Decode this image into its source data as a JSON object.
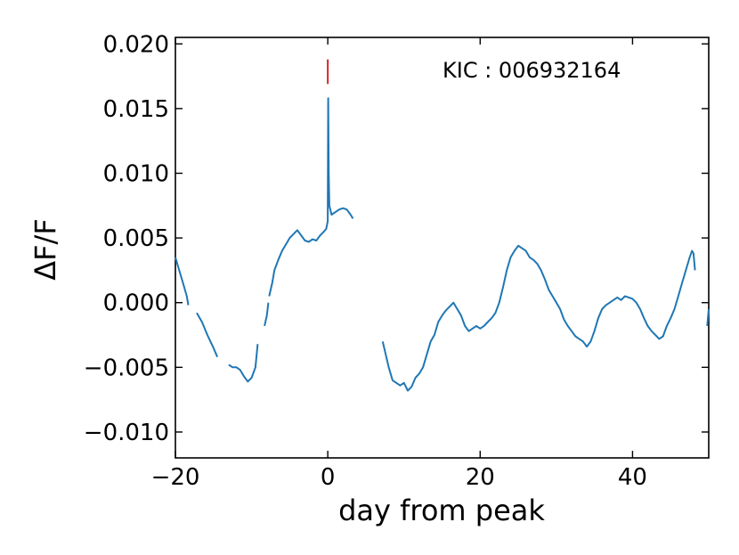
{
  "chart_data": {
    "type": "line",
    "title": "",
    "xlabel": "day from peak",
    "ylabel": "ΔF/F",
    "xlim": [
      -20,
      50
    ],
    "ylim": [
      -0.012,
      0.0205
    ],
    "xticks": [
      -20,
      0,
      20,
      40
    ],
    "xtick_labels": [
      "−20",
      "0",
      "20",
      "40"
    ],
    "yticks": [
      -0.01,
      -0.005,
      0.0,
      0.005,
      0.01,
      0.015,
      0.02
    ],
    "ytick_labels": [
      "−0.010",
      "−0.005",
      "0.000",
      "0.005",
      "0.010",
      "0.015",
      "0.020"
    ],
    "grid": false,
    "annotation": "KIC : 006932164",
    "peak_marker": {
      "x": 0,
      "y_range": [
        0.0169,
        0.0188
      ],
      "color": "#d62728"
    },
    "series_color": "#1f77b4",
    "segments": [
      [
        [
          -20.0,
          0.0035
        ],
        [
          -19.5,
          0.0025
        ],
        [
          -19.0,
          0.0015
        ],
        [
          -18.5,
          0.0005
        ],
        [
          -18.3,
          -0.0002
        ]
      ],
      [
        [
          -17.2,
          -0.0008
        ],
        [
          -16.5,
          -0.0015
        ],
        [
          -15.8,
          -0.0025
        ],
        [
          -15.0,
          -0.0035
        ],
        [
          -14.5,
          -0.0042
        ]
      ],
      [
        [
          -13.0,
          -0.0048
        ],
        [
          -12.5,
          -0.005
        ],
        [
          -12.0,
          -0.005
        ],
        [
          -11.5,
          -0.0052
        ],
        [
          -11.0,
          -0.0057
        ],
        [
          -10.5,
          -0.0061
        ],
        [
          -10.0,
          -0.0058
        ],
        [
          -9.5,
          -0.005
        ],
        [
          -9.2,
          -0.0032
        ]
      ],
      [
        [
          -8.3,
          -0.0018
        ],
        [
          -8.0,
          -0.001
        ],
        [
          -7.8,
          0.0
        ]
      ],
      [
        [
          -7.7,
          0.0005
        ],
        [
          -7.3,
          0.0015
        ],
        [
          -7.0,
          0.0025
        ],
        [
          -6.5,
          0.0033
        ],
        [
          -6.0,
          0.004
        ],
        [
          -5.5,
          0.0045
        ],
        [
          -5.0,
          0.005
        ],
        [
          -4.5,
          0.0053
        ],
        [
          -4.0,
          0.0056
        ],
        [
          -3.5,
          0.0052
        ],
        [
          -3.0,
          0.0048
        ],
        [
          -2.5,
          0.0047
        ],
        [
          -2.0,
          0.0049
        ],
        [
          -1.5,
          0.0048
        ],
        [
          -1.0,
          0.0052
        ],
        [
          -0.5,
          0.0055
        ],
        [
          -0.2,
          0.0057
        ],
        [
          0.0,
          0.0063
        ],
        [
          0.05,
          0.0158
        ],
        [
          0.12,
          0.01
        ],
        [
          0.2,
          0.0075
        ],
        [
          0.5,
          0.0068
        ],
        [
          1.0,
          0.007
        ],
        [
          1.5,
          0.0072
        ],
        [
          2.0,
          0.0073
        ],
        [
          2.5,
          0.0072
        ],
        [
          3.0,
          0.0068
        ],
        [
          3.3,
          0.0065
        ]
      ],
      [
        [
          7.2,
          -0.003
        ],
        [
          7.6,
          -0.004
        ],
        [
          8.0,
          -0.005
        ],
        [
          8.5,
          -0.006
        ],
        [
          9.0,
          -0.0062
        ],
        [
          9.5,
          -0.0064
        ],
        [
          10.0,
          -0.0062
        ],
        [
          10.5,
          -0.0068
        ],
        [
          11.0,
          -0.0065
        ],
        [
          11.5,
          -0.0058
        ],
        [
          12.0,
          -0.0055
        ],
        [
          12.5,
          -0.005
        ],
        [
          13.0,
          -0.004
        ],
        [
          13.5,
          -0.003
        ],
        [
          14.0,
          -0.0025
        ],
        [
          14.5,
          -0.0015
        ],
        [
          15.0,
          -0.001
        ],
        [
          15.5,
          -0.0006
        ],
        [
          16.0,
          -0.0003
        ],
        [
          16.5,
          0.0
        ],
        [
          17.0,
          -0.0005
        ],
        [
          17.5,
          -0.001
        ],
        [
          18.0,
          -0.0018
        ],
        [
          18.5,
          -0.0022
        ],
        [
          19.0,
          -0.002
        ],
        [
          19.5,
          -0.0018
        ],
        [
          20.0,
          -0.002
        ],
        [
          20.5,
          -0.0018
        ],
        [
          21.0,
          -0.0015
        ],
        [
          21.5,
          -0.0012
        ],
        [
          22.0,
          -0.0008
        ],
        [
          22.5,
          0.0
        ],
        [
          23.0,
          0.0012
        ],
        [
          23.5,
          0.0025
        ],
        [
          24.0,
          0.0035
        ],
        [
          24.5,
          0.004
        ],
        [
          25.0,
          0.0044
        ],
        [
          25.5,
          0.0042
        ],
        [
          26.0,
          0.004
        ],
        [
          26.5,
          0.0035
        ],
        [
          27.0,
          0.0033
        ],
        [
          27.5,
          0.003
        ],
        [
          28.0,
          0.0025
        ],
        [
          28.5,
          0.0018
        ],
        [
          29.0,
          0.001
        ],
        [
          29.5,
          0.0005
        ],
        [
          30.0,
          0.0
        ],
        [
          30.5,
          -0.0005
        ],
        [
          31.0,
          -0.0013
        ],
        [
          31.5,
          -0.0018
        ],
        [
          32.0,
          -0.0022
        ],
        [
          32.5,
          -0.0026
        ],
        [
          33.0,
          -0.0028
        ],
        [
          33.5,
          -0.003
        ],
        [
          34.0,
          -0.0034
        ],
        [
          34.5,
          -0.003
        ],
        [
          35.0,
          -0.0022
        ],
        [
          35.5,
          -0.0012
        ],
        [
          36.0,
          -0.0005
        ],
        [
          36.5,
          -0.0002
        ],
        [
          37.0,
          0.0
        ],
        [
          37.5,
          0.0002
        ],
        [
          38.0,
          0.0004
        ],
        [
          38.5,
          0.0002
        ],
        [
          39.0,
          0.0005
        ],
        [
          39.5,
          0.0004
        ],
        [
          40.0,
          0.0003
        ],
        [
          40.5,
          0.0
        ],
        [
          41.0,
          -0.0005
        ],
        [
          41.5,
          -0.0012
        ],
        [
          42.0,
          -0.0018
        ],
        [
          42.5,
          -0.0022
        ],
        [
          43.0,
          -0.0025
        ],
        [
          43.5,
          -0.0028
        ],
        [
          44.0,
          -0.0026
        ],
        [
          44.5,
          -0.0018
        ],
        [
          45.0,
          -0.0012
        ],
        [
          45.5,
          -0.0005
        ],
        [
          46.0,
          0.0005
        ],
        [
          46.5,
          0.0015
        ],
        [
          47.0,
          0.0025
        ],
        [
          47.5,
          0.0035
        ],
        [
          47.8,
          0.004
        ],
        [
          48.0,
          0.0038
        ],
        [
          48.2,
          0.0025
        ]
      ],
      [
        [
          49.8,
          -0.0018
        ],
        [
          50.0,
          -0.0005
        ]
      ]
    ]
  }
}
